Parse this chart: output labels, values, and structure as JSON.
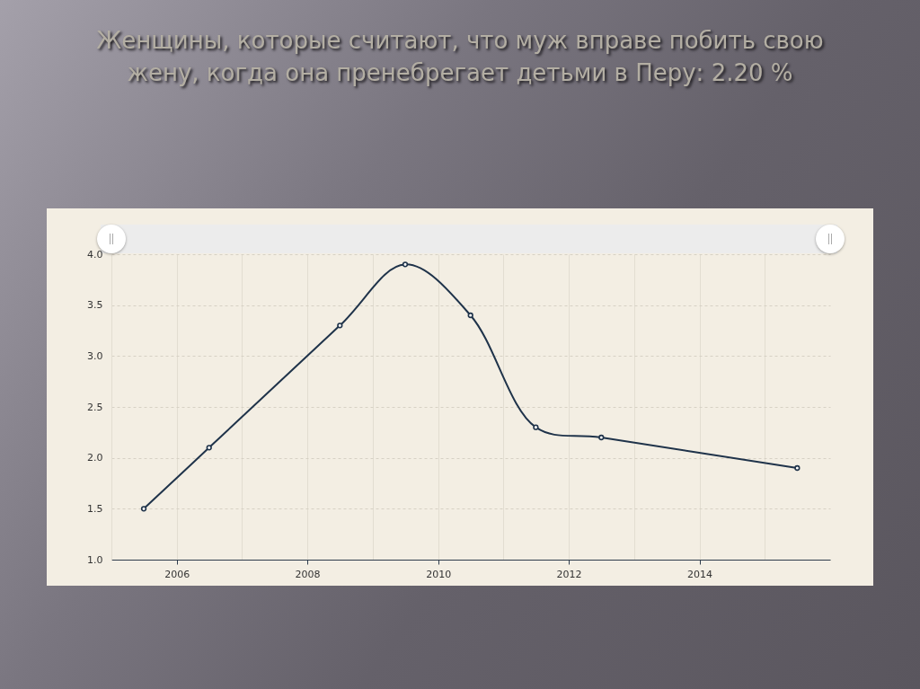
{
  "chart_data": {
    "type": "line",
    "title": "Женщины, которые считают, что муж вправе побить свою жену, когда она пренебрегает детьми в Перу: 2.20 %",
    "x": [
      "2005-07",
      "2006-07",
      "2008-07",
      "2009-07",
      "2010-07",
      "2011-07",
      "2012-07",
      "2015-07"
    ],
    "values": [
      1.5,
      2.1,
      3.3,
      3.9,
      3.4,
      2.3,
      2.2,
      1.9
    ],
    "color": "#1f334a",
    "xlim": [
      "2005",
      "2016"
    ],
    "xticks": [
      "2006",
      {
        "value": "2007",
        "label": null
      },
      "2008",
      {
        "value": "2009",
        "label": null
      },
      "2010",
      {
        "value": "2011",
        "label": null
      },
      "2012",
      {
        "value": "2013",
        "label": null
      },
      "2014",
      {
        "value": "2015",
        "label": null
      }
    ],
    "ylim": [
      1,
      4
    ],
    "yticks": [
      {
        "value": 1,
        "label": "1.0"
      },
      1.5,
      {
        "value": 2,
        "label": "2.0"
      },
      2.5,
      {
        "value": 3,
        "label": "3.0"
      },
      3.5,
      {
        "value": 4,
        "label": "4.0"
      }
    ],
    "grid": true,
    "marker": "circle",
    "line_style": "solid"
  }
}
